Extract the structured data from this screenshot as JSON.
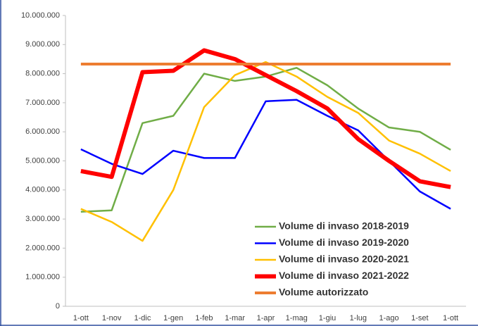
{
  "chart_data": {
    "type": "line",
    "categories": [
      "1-ott",
      "1-nov",
      "1-dic",
      "1-gen",
      "1-feb",
      "1-mar",
      "1-apr",
      "1-mag",
      "1-giu",
      "1-lug",
      "1-ago",
      "1-set",
      "1-ott"
    ],
    "series": [
      {
        "name": "Volume di invaso 2018-2019",
        "color": "#70ad47",
        "line_width": 2.5,
        "values": [
          3250000,
          3300000,
          6300000,
          6550000,
          8000000,
          7750000,
          7900000,
          8200000,
          7600000,
          6800000,
          6150000,
          6000000,
          5380000
        ]
      },
      {
        "name": "Volume di invaso 2019-2020",
        "color": "#0000ff",
        "line_width": 2.5,
        "values": [
          5400000,
          4900000,
          4550000,
          5350000,
          5100000,
          5100000,
          7050000,
          7100000,
          6550000,
          6050000,
          5000000,
          3950000,
          3350000
        ]
      },
      {
        "name": "Volume di invaso 2020-2021",
        "color": "#ffc000",
        "line_width": 2.5,
        "values": [
          3350000,
          2900000,
          2250000,
          4000000,
          6850000,
          7950000,
          8400000,
          7900000,
          7200000,
          6650000,
          5700000,
          5250000,
          4650000
        ]
      },
      {
        "name": "Volume di invaso 2021-2022",
        "color": "#ff0000",
        "line_width": 6,
        "values": [
          4650000,
          4450000,
          8050000,
          8100000,
          8800000,
          8500000,
          7950000,
          7400000,
          6800000,
          5750000,
          5000000,
          4300000,
          4100000
        ]
      },
      {
        "name": "Volume autorizzato",
        "color": "#ed7d31",
        "line_width": 4,
        "values": [
          8330000,
          8330000,
          8330000,
          8330000,
          8330000,
          8330000,
          8330000,
          8330000,
          8330000,
          8330000,
          8330000,
          8330000,
          8330000
        ]
      }
    ],
    "ylim": [
      0,
      10000000
    ],
    "yticks": [
      0,
      {
        "value": 1000000,
        "label": "1.000.000"
      },
      {
        "value": 2000000,
        "label": "2.000.000"
      },
      {
        "value": 3000000,
        "label": "3.000.000"
      },
      {
        "value": 4000000,
        "label": "4.000.000"
      },
      {
        "value": 5000000,
        "label": "5.000.000"
      },
      {
        "value": 6000000,
        "label": "6.000.000"
      },
      {
        "value": 7000000,
        "label": "7.000.000"
      },
      {
        "value": 8000000,
        "label": "8.000.000"
      },
      {
        "value": 9000000,
        "label": "9.000.000"
      },
      {
        "value": 10000000,
        "label": "10.000.000"
      }
    ],
    "grid": false,
    "legend": "lower right"
  }
}
